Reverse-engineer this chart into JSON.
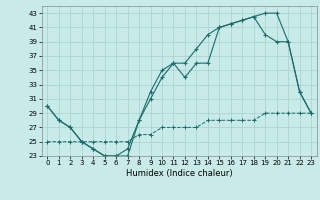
{
  "title": "",
  "xlabel": "Humidex (Indice chaleur)",
  "background_color": "#c8eae8",
  "grid_color": "#a8d0cc",
  "line_color": "#1a6b6b",
  "xlim": [
    -0.5,
    23.5
  ],
  "ylim": [
    23,
    44
  ],
  "yticks": [
    23,
    25,
    27,
    29,
    31,
    33,
    35,
    37,
    39,
    41,
    43
  ],
  "xticks": [
    0,
    1,
    2,
    3,
    4,
    5,
    6,
    7,
    8,
    9,
    10,
    11,
    12,
    13,
    14,
    15,
    16,
    17,
    18,
    19,
    20,
    21,
    22,
    23
  ],
  "series1_x": [
    0,
    1,
    2,
    3,
    4,
    5,
    6,
    7,
    8,
    9,
    10,
    11,
    12,
    13,
    14,
    15,
    16,
    17,
    18,
    19,
    20,
    21,
    22,
    23
  ],
  "series1_y": [
    30,
    28,
    27,
    25,
    24,
    23,
    23,
    23,
    28,
    32,
    35,
    36,
    34,
    36,
    36,
    41,
    41.5,
    42,
    42.5,
    43,
    43,
    39,
    32,
    29
  ],
  "series2_x": [
    0,
    1,
    2,
    3,
    4,
    5,
    6,
    7,
    8,
    9,
    10,
    11,
    12,
    13,
    14,
    15,
    16,
    17,
    18,
    19,
    20,
    21,
    22,
    23
  ],
  "series2_y": [
    30,
    28,
    27,
    25,
    24,
    23,
    23,
    24,
    28,
    31,
    34,
    36,
    36,
    38,
    40,
    41,
    41.5,
    42,
    42.5,
    40,
    39,
    39,
    32,
    29
  ],
  "series3_x": [
    0,
    1,
    2,
    3,
    4,
    5,
    6,
    7,
    8,
    9,
    10,
    11,
    12,
    13,
    14,
    15,
    16,
    17,
    18,
    19,
    20,
    21,
    22,
    23
  ],
  "series3_y": [
    25,
    25,
    25,
    25,
    25,
    25,
    25,
    25,
    26,
    26,
    27,
    27,
    27,
    27,
    28,
    28,
    28,
    28,
    28,
    29,
    29,
    29,
    29,
    29
  ]
}
